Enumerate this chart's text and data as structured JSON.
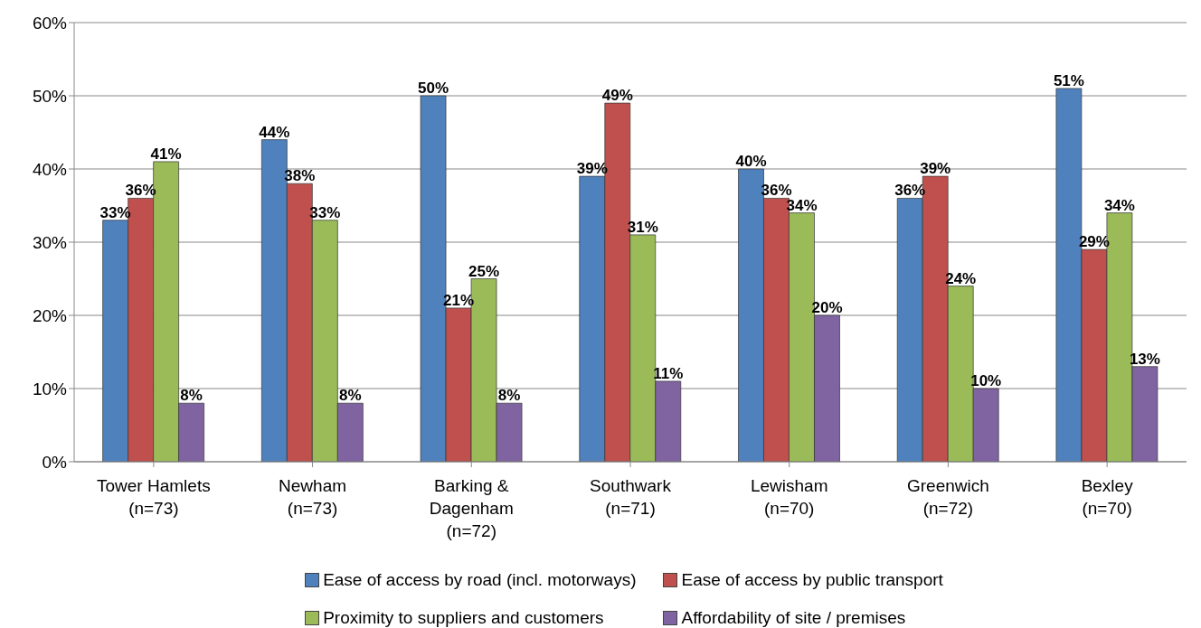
{
  "chart_data": {
    "type": "bar",
    "categories": [
      "Tower Hamlets\n(n=73)",
      "Newham\n(n=73)",
      "Barking &\nDagenham\n(n=72)",
      "Southwark\n(n=71)",
      "Lewisham\n(n=70)",
      "Greenwich\n(n=72)",
      "Bexley\n(n=70)"
    ],
    "series": [
      {
        "name": "Ease of access by road (incl. motorways)",
        "color": "#4f81bd",
        "values": [
          33,
          44,
          50,
          39,
          40,
          36,
          51
        ],
        "value_labels": [
          "33%",
          "44%",
          "50%",
          "39%",
          "40%",
          "36%",
          "51%"
        ]
      },
      {
        "name": "Ease of access by public transport",
        "color": "#c0504d",
        "values": [
          36,
          38,
          21,
          49,
          36,
          39,
          29
        ],
        "value_labels": [
          "36%",
          "38%",
          "21%",
          "49%",
          "36%",
          "39%",
          "29%"
        ]
      },
      {
        "name": "Proximity to suppliers and customers",
        "color": "#9bbb59",
        "values": [
          41,
          33,
          25,
          31,
          34,
          24,
          34
        ],
        "value_labels": [
          "41%",
          "33%",
          "25%",
          "31%",
          "34%",
          "24%",
          "34%"
        ]
      },
      {
        "name": "Affordability of site / premises",
        "color": "#8064a2",
        "values": [
          8,
          8,
          8,
          11,
          20,
          10,
          13
        ],
        "value_labels": [
          "8%",
          "8%",
          "8%",
          "11%",
          "20%",
          "10%",
          "13%"
        ]
      }
    ],
    "ylim": [
      0,
      60
    ],
    "yticks": [
      {
        "value": 0,
        "label": "0%"
      },
      {
        "value": 10,
        "label": "10%"
      },
      {
        "value": 20,
        "label": "20%"
      },
      {
        "value": 30,
        "label": "30%"
      },
      {
        "value": 40,
        "label": "40%"
      },
      {
        "value": 50,
        "label": "50%"
      },
      {
        "value": 60,
        "label": "60%"
      }
    ],
    "grid": "y",
    "legend": "bottom"
  }
}
